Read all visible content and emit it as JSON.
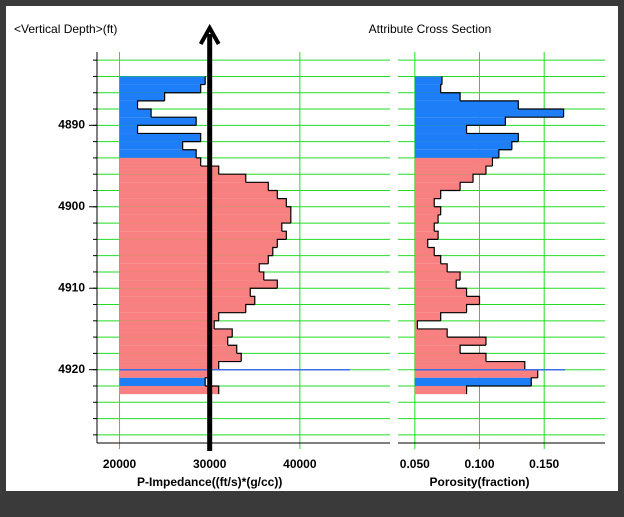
{
  "chart_data": {
    "type": "well-log",
    "y_label": "<Vertical Depth>(ft)",
    "title": "Attribute Cross Section",
    "ylim": [
      4881,
      4929
    ],
    "yticks": [
      4890,
      4900,
      4910,
      4920
    ],
    "ygrid": [
      4882,
      4884,
      4886,
      4888,
      4890,
      4892,
      4894,
      4896,
      4898,
      4900,
      4902,
      4904,
      4906,
      4908,
      4910,
      4912,
      4914,
      4916,
      4918,
      4920,
      4922,
      4924,
      4926,
      4928
    ],
    "marker_depth": 4920,
    "marker_color": "#3c6ee6",
    "grid_color": "#22dd22",
    "depth_bins": [
      4884,
      4885,
      4886,
      4887,
      4888,
      4889,
      4890,
      4891,
      4892,
      4893,
      4894,
      4895,
      4896,
      4897,
      4898,
      4899,
      4900,
      4901,
      4902,
      4903,
      4904,
      4905,
      4906,
      4907,
      4908,
      4909,
      4910,
      4911,
      4912,
      4913,
      4914,
      4915,
      4916,
      4917,
      4918,
      4919,
      4920,
      4921,
      4922,
      4923
    ],
    "zones": [
      {
        "top": 4884,
        "base": 4894,
        "color": "#1e7ef7"
      },
      {
        "top": 4894,
        "base": 4921,
        "color": "#f88080"
      },
      {
        "top": 4921,
        "base": 4922,
        "color": "#1e7ef7"
      },
      {
        "top": 4922,
        "base": 4923,
        "color": "#f88080"
      }
    ],
    "panels": [
      {
        "x_label": "P-Impedance((ft/s)*(g/cc))",
        "xlim": [
          17500,
          50000
        ],
        "xticks": [
          20000,
          30000,
          40000
        ],
        "base": 20000,
        "arrow_at": 30000,
        "values": [
          29500,
          29000,
          25000,
          22000,
          23500,
          28500,
          22000,
          29000,
          27000,
          28500,
          29000,
          31000,
          34000,
          36500,
          37500,
          38500,
          39000,
          39000,
          38000,
          38500,
          37500,
          37000,
          36500,
          35500,
          36000,
          37500,
          34500,
          35000,
          34000,
          31000,
          30500,
          32500,
          32000,
          33000,
          33500,
          31000,
          30000,
          29500,
          31000
        ]
      },
      {
        "x_label": "Porosity(fraction)",
        "xlim": [
          0.037,
          0.197
        ],
        "xticks": [
          {
            "value": 0.05,
            "label": "0.050"
          },
          {
            "value": 0.1,
            "label": "0.100"
          },
          {
            "value": 0.15,
            "label": "0.150"
          }
        ],
        "base": 0.05,
        "values": [
          0.071,
          0.07,
          0.085,
          0.13,
          0.165,
          0.12,
          0.09,
          0.13,
          0.125,
          0.115,
          0.11,
          0.105,
          0.095,
          0.085,
          0.07,
          0.065,
          0.07,
          0.068,
          0.065,
          0.068,
          0.06,
          0.065,
          0.07,
          0.075,
          0.085,
          0.082,
          0.09,
          0.1,
          0.09,
          0.07,
          0.052,
          0.075,
          0.105,
          0.085,
          0.105,
          0.135,
          0.145,
          0.14,
          0.09
        ]
      }
    ]
  }
}
